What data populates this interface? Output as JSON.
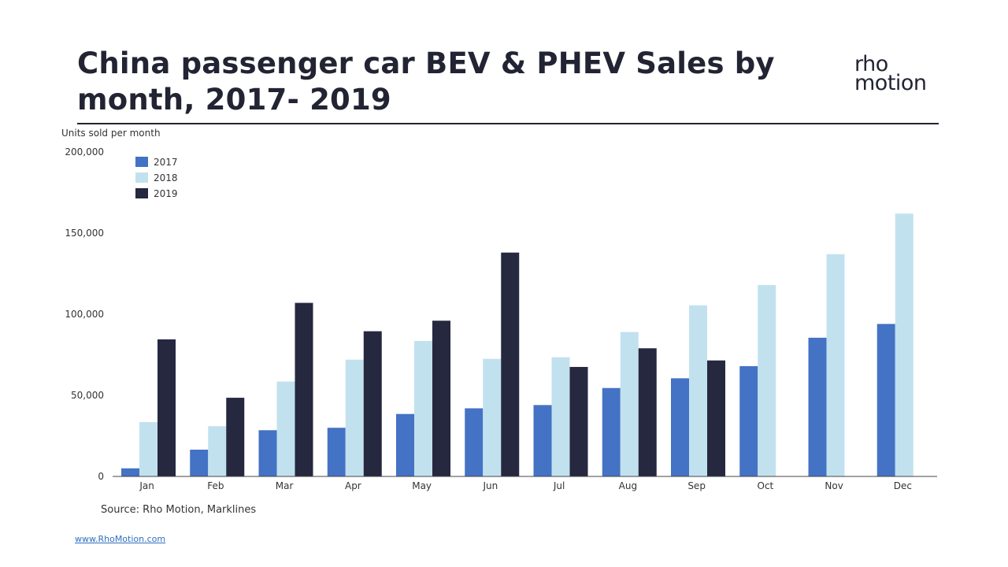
{
  "title": "China passenger car BEV & PHEV Sales by month, 2017- 2019",
  "logo": {
    "line1": "rho",
    "line2": "motion"
  },
  "source": "Source: Rho Motion, Marklines",
  "url": "www.RhoMotion.com",
  "colors": {
    "2017": "#4472c4",
    "2018": "#c2e1ef",
    "2019": "#262840"
  },
  "chart_data": {
    "type": "bar",
    "ylabel": "Units sold per month",
    "ylim": [
      0,
      200000
    ],
    "yticks": [
      0,
      50000,
      100000,
      150000,
      200000
    ],
    "ytick_labels": [
      "0",
      "50,000",
      "100,000",
      "150,000",
      "200,000"
    ],
    "categories": [
      "Jan",
      "Feb",
      "Mar",
      "Apr",
      "May",
      "Jun",
      "Jul",
      "Aug",
      "Sep",
      "Oct",
      "Nov",
      "Dec"
    ],
    "legend_position": "top-left",
    "series": [
      {
        "name": "2017",
        "values": [
          5000,
          16500,
          28500,
          30000,
          38500,
          42000,
          44000,
          54500,
          60500,
          68000,
          85500,
          94000
        ]
      },
      {
        "name": "2018",
        "values": [
          33500,
          31000,
          58500,
          72000,
          83500,
          72500,
          73500,
          89000,
          105500,
          118000,
          137000,
          162000
        ]
      },
      {
        "name": "2019",
        "values": [
          84500,
          48500,
          107000,
          89500,
          96000,
          138000,
          67500,
          79000,
          71500,
          null,
          null,
          null
        ]
      }
    ]
  }
}
